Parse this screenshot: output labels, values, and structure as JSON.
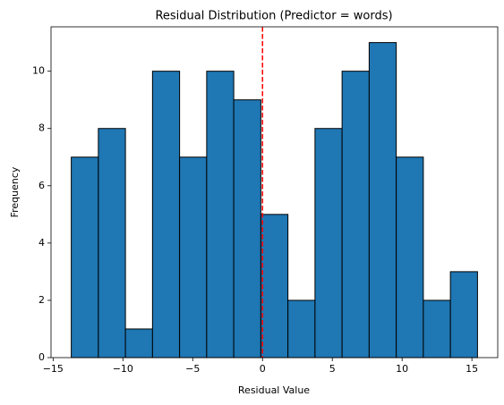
{
  "chart_data": {
    "type": "histogram",
    "title": "Residual Distribution (Predictor = words)",
    "xlabel": "Residual Value",
    "ylabel": "Frequency",
    "bins": [
      -13.7,
      -11.76,
      -9.82,
      -7.88,
      -5.94,
      -4.0,
      -2.06,
      -0.12,
      1.82,
      3.76,
      5.7,
      7.64,
      9.58,
      11.52,
      13.46,
      15.4
    ],
    "counts": [
      7,
      8,
      1,
      10,
      7,
      10,
      9,
      5,
      2,
      8,
      10,
      11,
      7,
      2,
      3
    ],
    "color": "#1f77b4",
    "edgecolor": "#000000",
    "vline": {
      "x": 0,
      "color": "#ff0000"
    },
    "xlim": [
      -15.15,
      16.85
    ],
    "xticks": [
      {
        "value": -15,
        "label": "−15"
      },
      {
        "value": -10,
        "label": "−10"
      },
      {
        "value": -5,
        "label": "−5"
      },
      0,
      5,
      10,
      15
    ],
    "ylim": [
      0,
      11.55
    ],
    "yticks": [
      0,
      2,
      4,
      6,
      8,
      10
    ]
  }
}
